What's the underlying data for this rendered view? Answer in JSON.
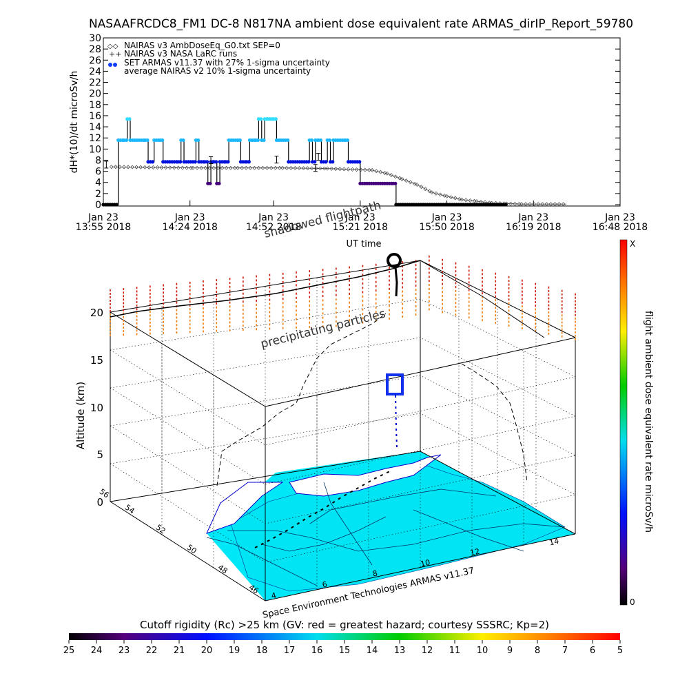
{
  "title": "NASAAFRCDC8_FM1 DC-8   N817NA ambient dose equivalent rate ARMAS_dirIP_Report_59780",
  "chart_data": [
    {
      "type": "line",
      "ylabel": "dH*(10)/dt microSv/h",
      "xlabel": "UT time",
      "ylim": [
        0,
        30
      ],
      "y_ticks": [
        "0",
        "2",
        "4",
        "6",
        "8",
        "10",
        "12",
        "14",
        "16",
        "18",
        "20",
        "22",
        "24",
        "26",
        "28",
        "30"
      ],
      "x_ticks": [
        {
          "l1": "Jan 23",
          "l2": "13:55 2018"
        },
        {
          "l1": "Jan 23",
          "l2": "14:24 2018"
        },
        {
          "l1": "Jan 23",
          "l2": "14:52 2018"
        },
        {
          "l1": "Jan 23",
          "l2": "15:21 2018"
        },
        {
          "l1": "Jan 23",
          "l2": "15:50 2018"
        },
        {
          "l1": "Jan 23",
          "l2": "16:19 2018"
        },
        {
          "l1": "Jan 23",
          "l2": "16:48 2018"
        }
      ],
      "x_minutes": [
        0,
        29,
        57,
        86,
        115,
        144,
        173
      ],
      "legend": [
        "NAIRAS v3 AmbDoseEq_G0.txt SEP=0",
        "NAIRAS v3 NASA LaRC runs",
        "SET ARMAS v11.37 with 27% 1-sigma uncertainty",
        "average NAIRAS v2 10% 1-sigma uncertainty"
      ],
      "series_nairas": [
        [
          2.7,
          6.8
        ],
        [
          30,
          6.6
        ],
        [
          45,
          6.6
        ],
        [
          60,
          6.6
        ],
        [
          75,
          6.5
        ],
        [
          90,
          6.2
        ],
        [
          95,
          5.6
        ],
        [
          100,
          4.6
        ],
        [
          105,
          3.6
        ],
        [
          110,
          2.2
        ],
        [
          115,
          1.5
        ],
        [
          120,
          0.9
        ],
        [
          125,
          0.6
        ],
        [
          130,
          0.3
        ],
        [
          135,
          0.2
        ],
        [
          140,
          0.1
        ],
        [
          155,
          0.1
        ]
      ],
      "series_armas": [
        [
          0,
          0
        ],
        [
          4.5,
          0
        ],
        [
          5,
          11.6
        ],
        [
          7,
          11.6
        ],
        [
          8,
          15.4
        ],
        [
          9,
          11.6
        ],
        [
          12,
          11.6
        ],
        [
          14,
          11.6
        ],
        [
          15,
          7.7
        ],
        [
          17,
          11.6
        ],
        [
          19,
          11.6
        ],
        [
          20,
          7.7
        ],
        [
          25,
          7.7
        ],
        [
          26,
          11.6
        ],
        [
          27,
          7.7
        ],
        [
          30,
          7.7
        ],
        [
          31,
          11.6
        ],
        [
          32,
          7.7
        ],
        [
          34,
          7.7
        ],
        [
          35,
          3.8
        ],
        [
          36,
          7.7
        ],
        [
          37,
          7.7
        ],
        [
          38,
          3.8
        ],
        [
          39,
          7.7
        ],
        [
          41,
          7.7
        ],
        [
          42,
          11.6
        ],
        [
          45,
          11.6
        ],
        [
          46,
          7.7
        ],
        [
          48,
          7.7
        ],
        [
          49,
          11.6
        ],
        [
          51,
          11.6
        ],
        [
          52,
          15.4
        ],
        [
          53,
          11.6
        ],
        [
          54,
          15.4
        ],
        [
          55,
          15.4
        ],
        [
          57,
          15.4
        ],
        [
          58,
          11.6
        ],
        [
          61,
          11.6
        ],
        [
          62,
          7.7
        ],
        [
          68,
          7.7
        ],
        [
          69,
          11.6
        ],
        [
          70,
          7.7
        ],
        [
          71,
          11.6
        ],
        [
          72,
          11.6
        ],
        [
          73,
          7.7
        ],
        [
          75,
          11.6
        ],
        [
          76,
          7.7
        ],
        [
          77,
          11.6
        ],
        [
          81,
          11.6
        ],
        [
          82,
          7.7
        ],
        [
          85,
          7.7
        ],
        [
          86,
          3.8
        ],
        [
          97,
          3.8
        ],
        [
          98,
          0
        ],
        [
          135,
          0
        ]
      ],
      "series_larc": [
        [
          1,
          7.2
        ],
        [
          36,
          8
        ],
        [
          58,
          8.1
        ],
        [
          71,
          6.6
        ],
        [
          72,
          8.6
        ]
      ]
    },
    {
      "type": "scatter",
      "ylabel": "Altitude (km)",
      "z_ticks": [
        "0",
        "5",
        "10",
        "15",
        "20"
      ],
      "lat_ticks": [
        "46",
        "48",
        "50",
        "52",
        "54",
        "56"
      ],
      "lon_ticks": [
        "4",
        "6",
        "8",
        "10",
        "12",
        "14"
      ],
      "annotations": [
        "shadowed flightpath",
        "precipitating particles"
      ],
      "credit": "Space Environment Technologies ARMAS v11.37",
      "colorbar_label": "flight ambient dose equivalent rate microSv/h",
      "colorbar_max": "X",
      "colorbar_min": "0"
    },
    {
      "type": "heatmap",
      "title": "Cutoff rigidity (Rc) >25 km (GV: red = greatest hazard; courtesy SSSRC; Kp=2)",
      "ticks": [
        "25",
        "24",
        "23",
        "22",
        "21",
        "20",
        "19",
        "18",
        "17",
        "16",
        "15",
        "14",
        "13",
        "12",
        "11",
        "10",
        "9",
        "8",
        "7",
        "6",
        "5"
      ]
    }
  ],
  "colors": {
    "armas_cyan": "#33ccff",
    "armas_blue": "#0000cc",
    "armas_purple": "#550088",
    "map_fill": "#00e8f8",
    "particles_red": "#cc1100",
    "particles_orange": "#ee7700"
  }
}
